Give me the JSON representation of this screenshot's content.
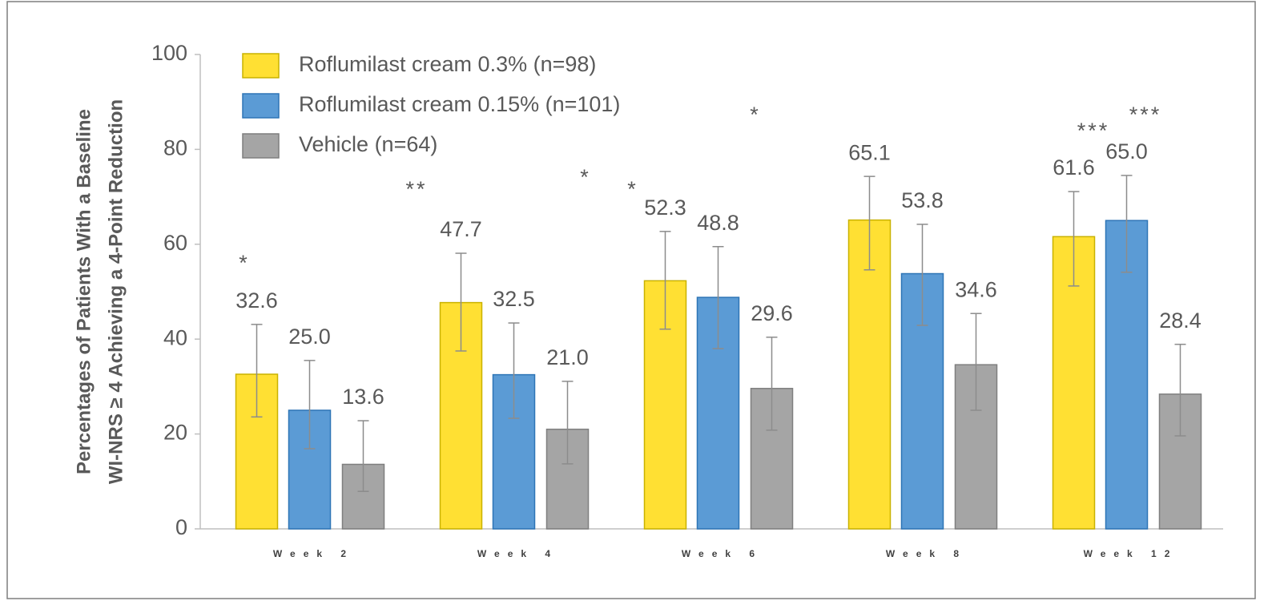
{
  "chart_data": {
    "type": "bar",
    "ylabel": [
      "Percentages of Patients With a Baseline",
      "WI-NRS ≥ 4 Achieving a 4-Point Reduction"
    ],
    "categories": [
      "Week 2",
      "Week 4",
      "Week 6",
      "Week 8",
      "Week 12"
    ],
    "series": [
      {
        "name": "Roflumilast cream 0.3% (n=98)",
        "color": "#FFE033",
        "values": [
          32.6,
          47.7,
          52.3,
          65.1,
          61.6
        ],
        "value_labels": [
          "32.6",
          "47.7",
          "52.3",
          "65.1",
          "61.6"
        ],
        "error_low": [
          23.6,
          37.5,
          42.1,
          54.6,
          51.2
        ],
        "error_high": [
          43.1,
          58.1,
          62.7,
          74.3,
          71.1
        ]
      },
      {
        "name": "Roflumilast cream 0.15% (n=101)",
        "color": "#5B9BD5",
        "values": [
          25.0,
          32.5,
          48.8,
          53.8,
          65.0
        ],
        "value_labels": [
          "25.0",
          "32.5",
          "48.8",
          "53.8",
          "65.0"
        ],
        "error_low": [
          16.9,
          23.3,
          38.0,
          42.9,
          54.1
        ],
        "error_high": [
          35.5,
          43.4,
          59.5,
          64.2,
          74.5
        ]
      },
      {
        "name": "Vehicle (n=64)",
        "color": "#A5A5A5",
        "values": [
          13.6,
          21.0,
          29.6,
          34.6,
          28.4
        ],
        "value_labels": [
          "13.6",
          "21.0",
          "29.6",
          "34.6",
          "28.4"
        ],
        "error_low": [
          7.9,
          13.7,
          20.8,
          25.0,
          19.6
        ],
        "error_high": [
          22.8,
          31.1,
          40.4,
          45.4,
          38.9
        ]
      }
    ],
    "annotations": [
      "*",
      "**",
      "*",
      "*",
      "*",
      "***",
      "***"
    ],
    "ylim": [
      0,
      100
    ],
    "yticks": [
      0,
      20,
      40,
      60,
      80,
      100
    ],
    "grid": false
  }
}
